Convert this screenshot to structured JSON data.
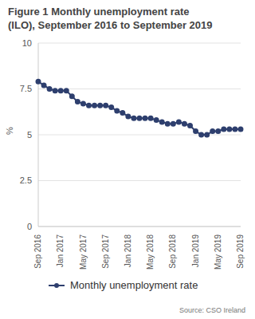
{
  "chart_data": {
    "type": "line",
    "title": "Figure 1 Monthly unemployment rate (ILO), September 2016 to September 2019",
    "y_label": "%",
    "source": "Source: CSO Ireland",
    "categories": [
      "Sep 2016",
      null,
      null,
      null,
      "Jan 2017",
      null,
      null,
      null,
      "May 2017",
      null,
      null,
      null,
      "Sep 2017",
      null,
      null,
      null,
      "Jan 2018",
      null,
      null,
      null,
      "May 2018",
      null,
      null,
      null,
      "Sep 2018",
      null,
      null,
      null,
      "Jan 2019",
      null,
      null,
      null,
      "May 2019",
      null,
      null,
      null,
      "Sep 2019"
    ],
    "series": [
      {
        "name": "Monthly unemployment rate",
        "color": "#2e3f6e",
        "marker": "circle",
        "values": [
          7.9,
          7.7,
          7.5,
          7.4,
          7.4,
          7.4,
          7.1,
          6.8,
          6.7,
          6.6,
          6.6,
          6.6,
          6.6,
          6.5,
          6.3,
          6.2,
          6.0,
          5.9,
          5.9,
          5.9,
          5.9,
          5.8,
          5.7,
          5.6,
          5.6,
          5.7,
          5.6,
          5.5,
          5.2,
          5.0,
          5.0,
          5.2,
          5.2,
          5.3,
          5.3,
          5.3,
          5.3
        ]
      }
    ],
    "ylim": [
      0,
      10
    ],
    "yticks": [
      0,
      2.5,
      5,
      7.5,
      10
    ],
    "grid": true,
    "legend": "bottom"
  }
}
